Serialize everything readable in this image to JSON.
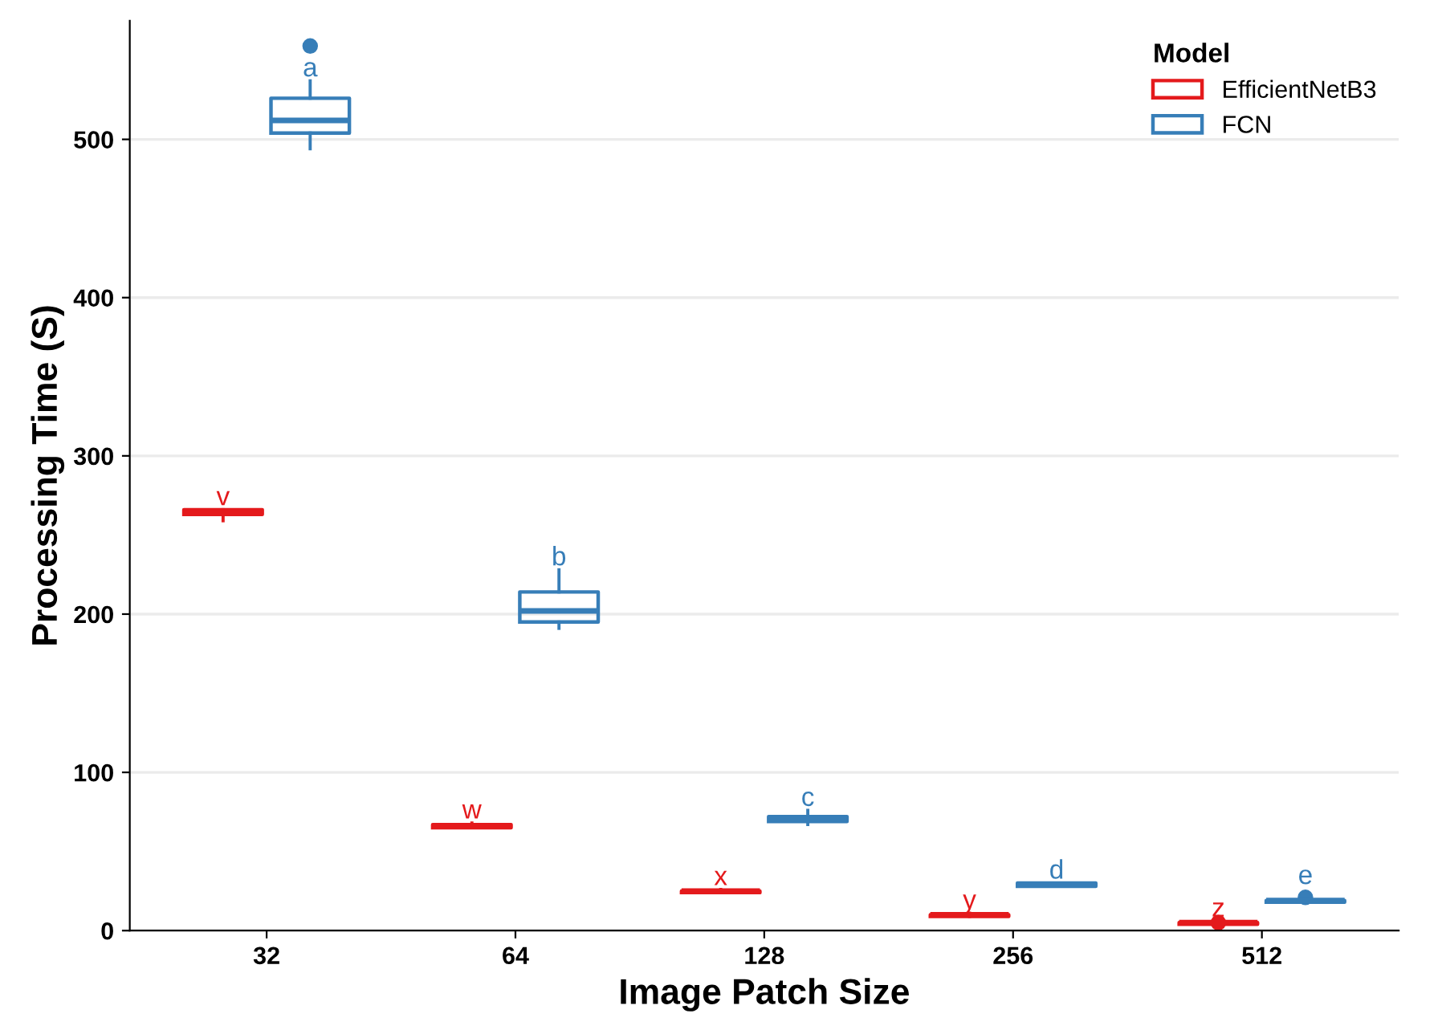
{
  "chart_data": {
    "type": "box",
    "xlabel": "Image Patch Size",
    "ylabel": "Processing Time (S)",
    "legend_title": "Model",
    "legend": "top right",
    "grid": "y",
    "categories": [
      "32",
      "64",
      "128",
      "256",
      "512"
    ],
    "ylim": [
      0,
      575
    ],
    "yticks": [
      0,
      100,
      200,
      300,
      400,
      500
    ],
    "series": [
      {
        "name": "EfficientNetB3",
        "color": "#e41a1c",
        "boxes": [
          {
            "low": 259,
            "q1": 263,
            "median": 264,
            "q3": 266,
            "high": 266
          },
          {
            "low": 65,
            "q1": 65,
            "median": 66,
            "q3": 67,
            "high": 68
          },
          {
            "low": 24,
            "q1": 24,
            "median": 25,
            "q3": 25,
            "high": 26
          },
          {
            "low": 9,
            "q1": 9,
            "median": 10,
            "q3": 10,
            "high": 11
          },
          {
            "low": 4,
            "q1": 4,
            "median": 5,
            "q3": 5,
            "high": 6,
            "outliers": [
              5
            ]
          }
        ]
      },
      {
        "name": "FCN",
        "color": "#377eb8",
        "boxes": [
          {
            "low": 494,
            "q1": 504,
            "median": 512,
            "q3": 526,
            "high": 537,
            "outliers": [
              559
            ]
          },
          {
            "low": 191,
            "q1": 195,
            "median": 202,
            "q3": 214,
            "high": 228
          },
          {
            "low": 67,
            "q1": 69,
            "median": 70,
            "q3": 72,
            "high": 76
          },
          {
            "low": 28,
            "q1": 28,
            "median": 29,
            "q3": 30,
            "high": 30
          },
          {
            "low": 18,
            "q1": 18,
            "median": 19,
            "q3": 19,
            "high": 20,
            "outliers": [
              21
            ]
          }
        ]
      }
    ],
    "annotations": [
      "v",
      "w",
      "x",
      "y",
      "z",
      "a",
      "b",
      "c",
      "d",
      "e"
    ]
  }
}
